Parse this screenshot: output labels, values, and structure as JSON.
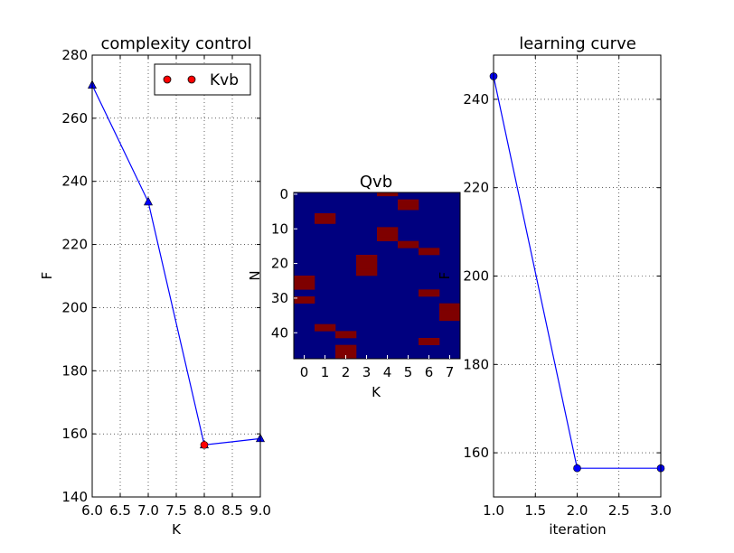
{
  "chart_data": [
    {
      "type": "line",
      "title": "complexity control",
      "xlabel": "K",
      "ylabel": "F",
      "xlim": [
        6.0,
        9.0
      ],
      "ylim": [
        140,
        280
      ],
      "xticks": [
        "6.0",
        "6.5",
        "7.0",
        "7.5",
        "8.0",
        "8.5",
        "9.0"
      ],
      "yticks": [
        "140",
        "160",
        "180",
        "200",
        "220",
        "240",
        "260",
        "280"
      ],
      "grid": true,
      "legend_position": "top-right",
      "series": [
        {
          "marker": "triangle",
          "color": "#0000ff",
          "x": [
            6,
            7,
            8,
            9
          ],
          "y": [
            270.5,
            233.5,
            156.5,
            158.5
          ]
        },
        {
          "name": "Kvb",
          "marker": "circle",
          "color": "#ff0000",
          "x": [
            8
          ],
          "y": [
            156.5
          ]
        }
      ]
    },
    {
      "type": "heatmap",
      "title": "Qvb",
      "xlabel": "K",
      "ylabel": "N",
      "xticks": [
        "0",
        "1",
        "2",
        "3",
        "4",
        "5",
        "6",
        "7"
      ],
      "yticks": [
        "0",
        "10",
        "20",
        "30",
        "40"
      ],
      "rows": 48,
      "cols": 8,
      "background_color": "#00007f",
      "active_color": "#7f0000",
      "active_cells": [
        {
          "col": 4,
          "row": 0
        },
        {
          "col": 5,
          "row": 2
        },
        {
          "col": 5,
          "row": 3
        },
        {
          "col": 5,
          "row": 4
        },
        {
          "col": 1,
          "row": 6
        },
        {
          "col": 1,
          "row": 7
        },
        {
          "col": 1,
          "row": 8
        },
        {
          "col": 4,
          "row": 10
        },
        {
          "col": 4,
          "row": 11
        },
        {
          "col": 4,
          "row": 12
        },
        {
          "col": 4,
          "row": 13
        },
        {
          "col": 5,
          "row": 14
        },
        {
          "col": 5,
          "row": 15
        },
        {
          "col": 6,
          "row": 16
        },
        {
          "col": 6,
          "row": 17
        },
        {
          "col": 3,
          "row": 18
        },
        {
          "col": 3,
          "row": 19
        },
        {
          "col": 3,
          "row": 20
        },
        {
          "col": 3,
          "row": 21
        },
        {
          "col": 3,
          "row": 22
        },
        {
          "col": 3,
          "row": 23
        },
        {
          "col": 0,
          "row": 24
        },
        {
          "col": 0,
          "row": 25
        },
        {
          "col": 0,
          "row": 26
        },
        {
          "col": 0,
          "row": 27
        },
        {
          "col": 6,
          "row": 28
        },
        {
          "col": 6,
          "row": 29
        },
        {
          "col": 0,
          "row": 30
        },
        {
          "col": 0,
          "row": 31
        },
        {
          "col": 7,
          "row": 32
        },
        {
          "col": 7,
          "row": 33
        },
        {
          "col": 7,
          "row": 34
        },
        {
          "col": 7,
          "row": 35
        },
        {
          "col": 7,
          "row": 36
        },
        {
          "col": 1,
          "row": 38
        },
        {
          "col": 1,
          "row": 39
        },
        {
          "col": 2,
          "row": 40
        },
        {
          "col": 2,
          "row": 41
        },
        {
          "col": 6,
          "row": 42
        },
        {
          "col": 6,
          "row": 43
        },
        {
          "col": 2,
          "row": 44
        },
        {
          "col": 2,
          "row": 45
        },
        {
          "col": 2,
          "row": 46
        },
        {
          "col": 2,
          "row": 47
        }
      ]
    },
    {
      "type": "line",
      "title": "learning curve",
      "xlabel": "iteration",
      "ylabel": "F",
      "xlim": [
        1.0,
        3.0
      ],
      "ylim": [
        150,
        250
      ],
      "xticks": [
        "1.0",
        "1.5",
        "2.0",
        "2.5",
        "3.0"
      ],
      "yticks": [
        "160",
        "180",
        "200",
        "220",
        "240"
      ],
      "grid": true,
      "series": [
        {
          "marker": "circle",
          "color": "#0000ff",
          "x": [
            1,
            2,
            3
          ],
          "y": [
            245.2,
            156.5,
            156.5
          ]
        }
      ]
    }
  ]
}
